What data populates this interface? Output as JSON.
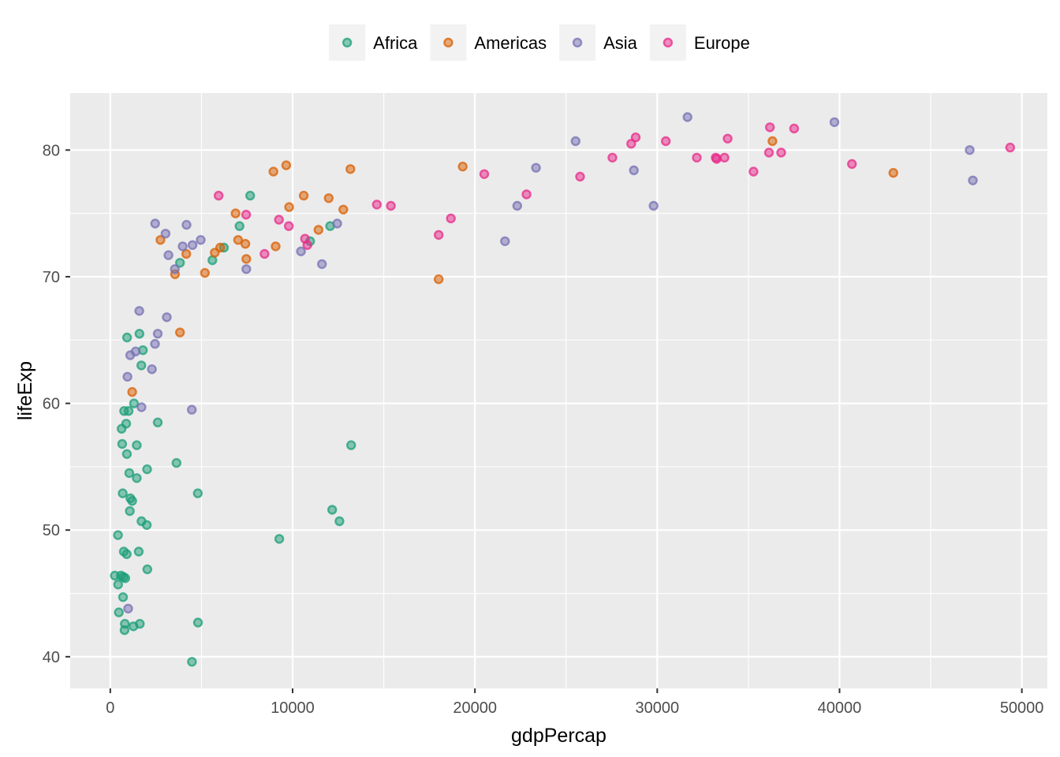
{
  "chart_data": {
    "type": "scatter",
    "title": "",
    "xlabel": "gdpPercap",
    "ylabel": "lifeExp",
    "xlim": [
      -2200,
      51400
    ],
    "ylim": [
      37.5,
      84.5
    ],
    "x_ticks": [
      0,
      10000,
      20000,
      30000,
      40000,
      50000
    ],
    "y_ticks": [
      40,
      50,
      60,
      70,
      80
    ],
    "grid": true,
    "legend_position": "top",
    "background": "#ebebeb",
    "series": [
      {
        "name": "Africa",
        "color": "#1b9e77",
        "points": [
          [
            250,
            46.4
          ],
          [
            420,
            49.6
          ],
          [
            430,
            45.7
          ],
          [
            470,
            43.5
          ],
          [
            580,
            46.4
          ],
          [
            620,
            58.0
          ],
          [
            650,
            56.8
          ],
          [
            680,
            52.9
          ],
          [
            700,
            44.7
          ],
          [
            720,
            46.3
          ],
          [
            740,
            48.3
          ],
          [
            760,
            59.4
          ],
          [
            780,
            42.1
          ],
          [
            800,
            42.6
          ],
          [
            820,
            46.2
          ],
          [
            870,
            58.4
          ],
          [
            900,
            48.1
          ],
          [
            910,
            56.0
          ],
          [
            920,
            65.2
          ],
          [
            1000,
            59.4
          ],
          [
            1040,
            54.5
          ],
          [
            1070,
            51.5
          ],
          [
            1100,
            52.5
          ],
          [
            1200,
            52.3
          ],
          [
            1270,
            42.4
          ],
          [
            1300,
            60.0
          ],
          [
            1450,
            56.7
          ],
          [
            1450,
            54.1
          ],
          [
            1560,
            48.3
          ],
          [
            1600,
            65.5
          ],
          [
            1620,
            42.6
          ],
          [
            1700,
            63.0
          ],
          [
            1710,
            50.7
          ],
          [
            1790,
            64.2
          ],
          [
            2000,
            50.4
          ],
          [
            2020,
            54.8
          ],
          [
            2030,
            46.9
          ],
          [
            2600,
            58.5
          ],
          [
            3630,
            55.3
          ],
          [
            3820,
            71.1
          ],
          [
            4480,
            39.6
          ],
          [
            4800,
            52.9
          ],
          [
            4810,
            42.7
          ],
          [
            5600,
            71.3
          ],
          [
            6230,
            72.3
          ],
          [
            7090,
            74.0
          ],
          [
            7670,
            76.4
          ],
          [
            9270,
            49.3
          ],
          [
            10960,
            72.8
          ],
          [
            12060,
            74.0
          ],
          [
            12170,
            51.6
          ],
          [
            12570,
            50.7
          ],
          [
            13210,
            56.7
          ]
        ]
      },
      {
        "name": "Americas",
        "color": "#d95f02",
        "points": [
          [
            1200,
            60.9
          ],
          [
            2750,
            72.9
          ],
          [
            3550,
            70.2
          ],
          [
            3820,
            65.6
          ],
          [
            4170,
            71.8
          ],
          [
            5190,
            70.3
          ],
          [
            5730,
            71.9
          ],
          [
            6030,
            72.3
          ],
          [
            6870,
            75.0
          ],
          [
            7010,
            72.9
          ],
          [
            7410,
            72.6
          ],
          [
            7460,
            71.4
          ],
          [
            8950,
            78.3
          ],
          [
            9070,
            72.4
          ],
          [
            9650,
            78.8
          ],
          [
            9810,
            75.5
          ],
          [
            10610,
            76.4
          ],
          [
            11420,
            73.7
          ],
          [
            11980,
            76.2
          ],
          [
            12780,
            75.3
          ],
          [
            13170,
            78.5
          ],
          [
            18010,
            69.8
          ],
          [
            19330,
            78.7
          ],
          [
            36320,
            80.7
          ],
          [
            42950,
            78.2
          ]
        ]
      },
      {
        "name": "Asia",
        "color": "#7570b3",
        "points": [
          [
            940,
            62.1
          ],
          [
            980,
            43.8
          ],
          [
            1090,
            63.8
          ],
          [
            1390,
            64.1
          ],
          [
            1590,
            67.3
          ],
          [
            1710,
            59.7
          ],
          [
            2280,
            62.7
          ],
          [
            2450,
            64.7
          ],
          [
            2460,
            74.2
          ],
          [
            2600,
            65.5
          ],
          [
            3030,
            73.4
          ],
          [
            3100,
            66.8
          ],
          [
            3190,
            71.7
          ],
          [
            3540,
            70.6
          ],
          [
            3970,
            72.4
          ],
          [
            4180,
            74.1
          ],
          [
            4470,
            59.5
          ],
          [
            4510,
            72.5
          ],
          [
            4960,
            72.9
          ],
          [
            7460,
            70.6
          ],
          [
            10460,
            72.0
          ],
          [
            11610,
            71.0
          ],
          [
            12450,
            74.2
          ],
          [
            21650,
            72.8
          ],
          [
            22320,
            75.6
          ],
          [
            23350,
            78.6
          ],
          [
            25520,
            80.7
          ],
          [
            28720,
            78.4
          ],
          [
            29800,
            75.6
          ],
          [
            31660,
            82.6
          ],
          [
            39720,
            82.2
          ],
          [
            47140,
            80.0
          ],
          [
            47310,
            77.6
          ]
        ]
      },
      {
        "name": "Europe",
        "color": "#e7298a",
        "points": [
          [
            5940,
            76.4
          ],
          [
            7450,
            74.9
          ],
          [
            8460,
            71.8
          ],
          [
            9250,
            74.5
          ],
          [
            9790,
            74.0
          ],
          [
            10680,
            73.0
          ],
          [
            10810,
            72.5
          ],
          [
            14620,
            75.7
          ],
          [
            15390,
            75.6
          ],
          [
            18010,
            73.3
          ],
          [
            18680,
            74.6
          ],
          [
            20510,
            78.1
          ],
          [
            22830,
            76.5
          ],
          [
            25770,
            77.9
          ],
          [
            27540,
            79.4
          ],
          [
            28570,
            80.5
          ],
          [
            28820,
            81.0
          ],
          [
            30470,
            80.7
          ],
          [
            32170,
            79.4
          ],
          [
            33210,
            79.4
          ],
          [
            33260,
            79.3
          ],
          [
            33690,
            79.4
          ],
          [
            33860,
            80.9
          ],
          [
            35280,
            78.3
          ],
          [
            36130,
            79.8
          ],
          [
            36180,
            81.8
          ],
          [
            36800,
            79.8
          ],
          [
            37510,
            81.7
          ],
          [
            40680,
            78.9
          ],
          [
            49360,
            80.2
          ]
        ]
      }
    ]
  }
}
